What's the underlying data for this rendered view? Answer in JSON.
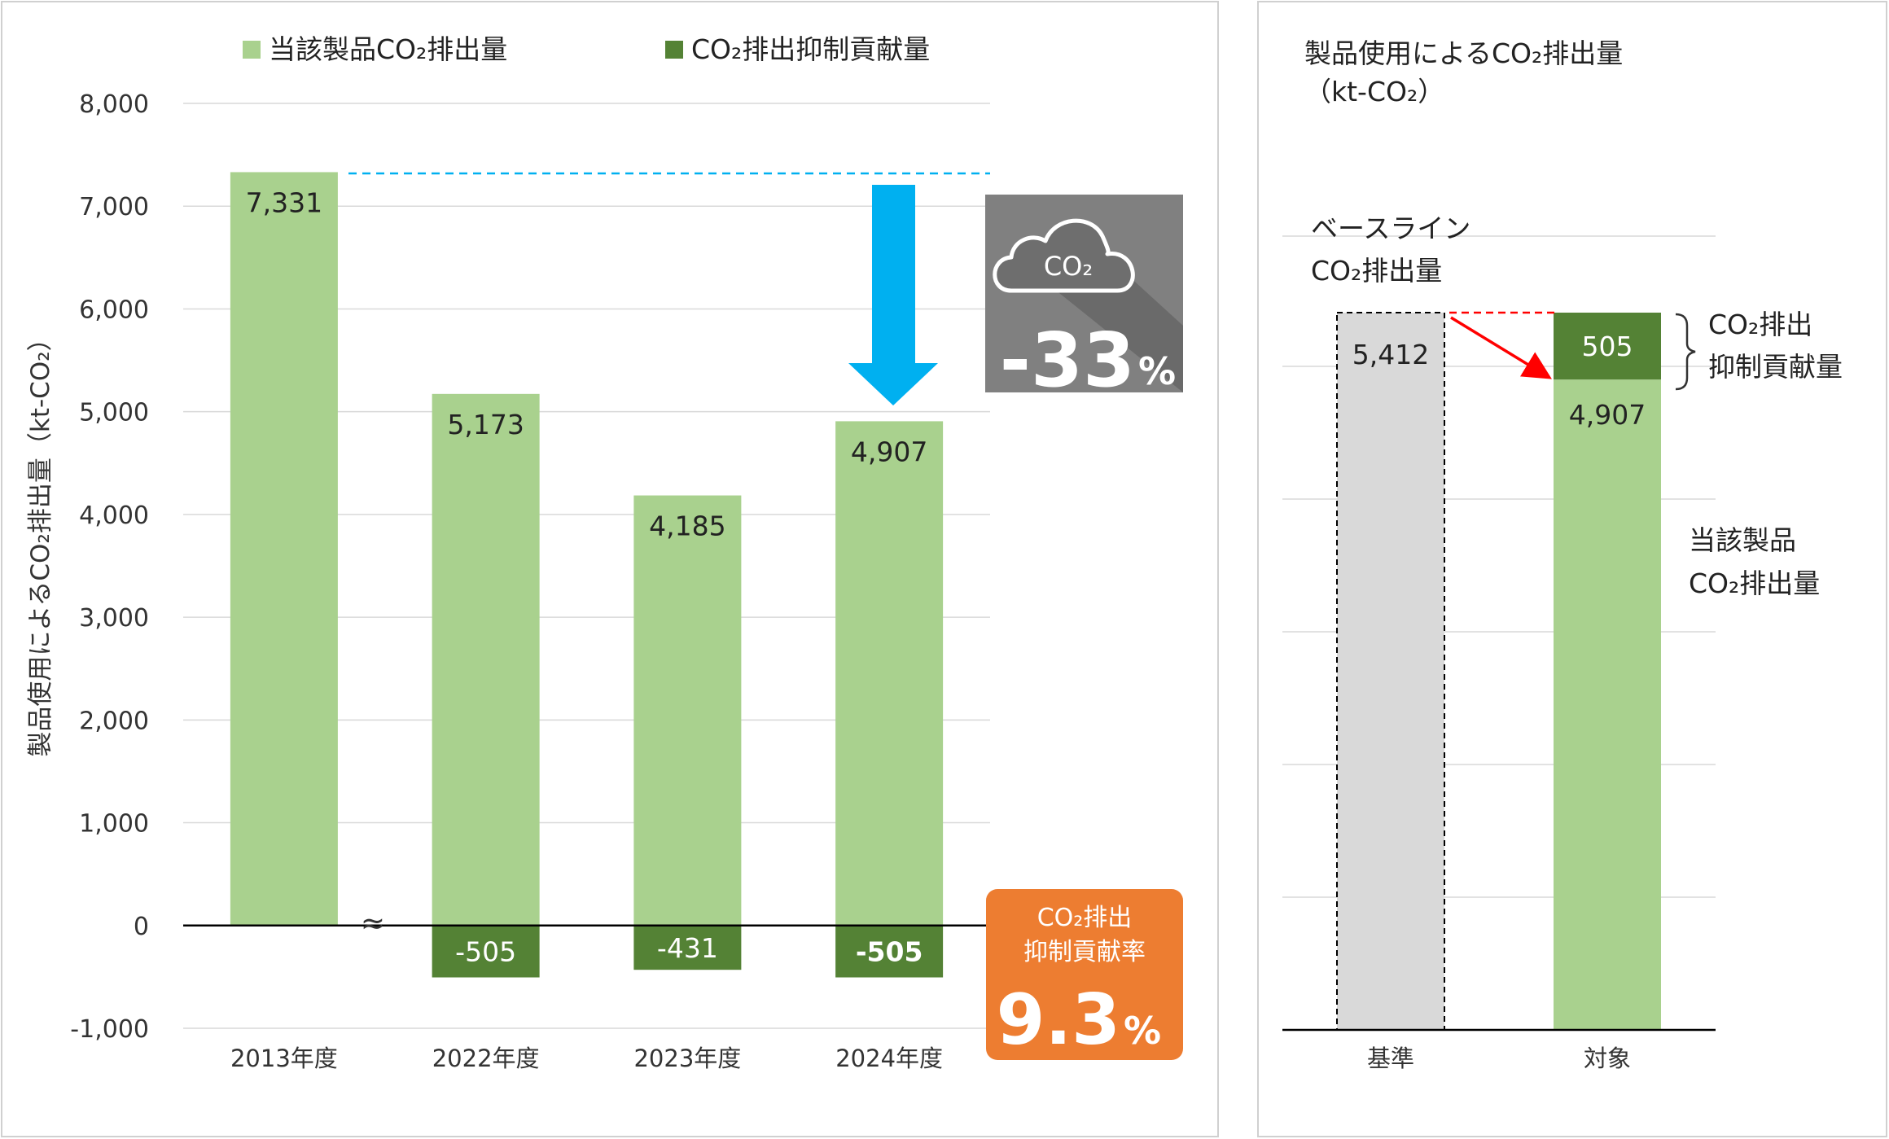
{
  "left_panel": {
    "legend": [
      {
        "label": "当該製品CO₂排出量",
        "color": "#a9d18e"
      },
      {
        "label": "CO₂排出抑制貢献量",
        "color": "#548235"
      }
    ],
    "ylabel": "製品使用によるCO₂排出量（kt-CO₂）",
    "y_ticks": [
      "8,000",
      "7,000",
      "6,000",
      "5,000",
      "4,000",
      "3,000",
      "2,000",
      "1,000",
      "0",
      "-1,000"
    ],
    "axis_break": "≈",
    "reduction_badge": {
      "value": "-33",
      "unit": "%",
      "icon_text": "CO₂",
      "icon": "cloud-icon",
      "color": "#808080"
    },
    "rate_badge": {
      "line1": "CO₂排出",
      "line2": "抑制貢献率",
      "value": "9.3",
      "unit": "%",
      "color": "#ed7d31"
    },
    "arrow_color": "#00b0f0"
  },
  "right_panel": {
    "title_line1": "製品使用によるCO₂排出量",
    "title_line2": "（kt-CO₂）",
    "baseline_label_line1": "ベースライン",
    "baseline_label_line2": "CO₂排出量",
    "contribution_label_line1": "CO₂排出",
    "contribution_label_line2": "抑制貢献量",
    "product_label_line1": "当該製品",
    "product_label_line2": "CO₂排出量"
  },
  "chart_data": [
    {
      "type": "bar",
      "stacked": true,
      "categories": [
        "2013年度",
        "2022年度",
        "2023年度",
        "2024年度"
      ],
      "series": [
        {
          "name": "当該製品CO₂排出量",
          "values": [
            7331,
            5173,
            4185,
            4907
          ],
          "labels": [
            "7,331",
            "5,173",
            "4,185",
            "4,907"
          ],
          "color": "#a9d18e"
        },
        {
          "name": "CO₂排出抑制貢献量",
          "values": [
            null,
            -505,
            -431,
            -505
          ],
          "labels": [
            "",
            "-505",
            "-431",
            "-505"
          ],
          "color": "#548235"
        }
      ],
      "ylim": [
        -1000,
        8000
      ],
      "grid": true,
      "legend": "top",
      "annotations": [
        "-33%",
        "9.3%"
      ]
    },
    {
      "type": "bar",
      "stacked": true,
      "categories": [
        "基準",
        "対象"
      ],
      "series": [
        {
          "values": [
            5412,
            4907
          ],
          "labels": [
            "5,412",
            "4,907"
          ],
          "colors": [
            "#d9d9d9",
            "#a9d18e"
          ]
        },
        {
          "values": [
            null,
            505
          ],
          "labels": [
            "",
            "505"
          ],
          "color": "#548235"
        }
      ],
      "grid": true
    }
  ]
}
